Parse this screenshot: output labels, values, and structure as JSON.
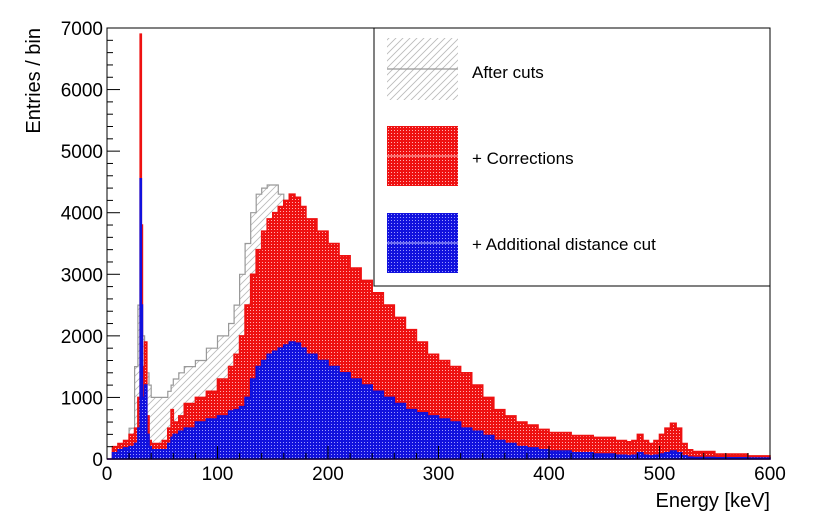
{
  "chart_data": {
    "type": "histogram",
    "title": "",
    "xlabel": "Energy [keV]",
    "ylabel": "Entries / bin",
    "xlim": [
      0,
      600
    ],
    "ylim": [
      0,
      7000
    ],
    "x_ticks": [
      "0",
      "100",
      "200",
      "300",
      "400",
      "500",
      "600"
    ],
    "y_ticks": [
      "0",
      "1000",
      "2000",
      "3000",
      "4000",
      "5000",
      "6000",
      "7000"
    ],
    "legend_position": "top-right",
    "x": [
      0,
      5,
      10,
      15,
      20,
      25,
      28,
      30,
      31,
      32,
      34,
      36,
      38,
      40,
      45,
      50,
      55,
      58,
      60,
      65,
      70,
      80,
      90,
      100,
      110,
      115,
      120,
      125,
      130,
      135,
      140,
      145,
      150,
      155,
      160,
      165,
      170,
      175,
      180,
      190,
      200,
      210,
      220,
      230,
      240,
      250,
      260,
      270,
      280,
      290,
      300,
      310,
      320,
      330,
      340,
      350,
      360,
      370,
      380,
      390,
      400,
      420,
      440,
      460,
      470,
      475,
      480,
      485,
      490,
      495,
      500,
      505,
      510,
      515,
      520,
      525,
      530,
      550,
      580,
      600
    ],
    "series": [
      {
        "name": "After cuts",
        "color": "#999999",
        "fill": "hatched",
        "values": [
          0,
          150,
          250,
          300,
          500,
          1500,
          2500,
          3800,
          2600,
          2000,
          1700,
          1400,
          1200,
          1000,
          1000,
          1000,
          1100,
          1200,
          1300,
          1400,
          1500,
          1600,
          1800,
          2000,
          2200,
          2500,
          3000,
          3500,
          4000,
          4300,
          4400,
          4450,
          4450,
          4300,
          4100,
          3900,
          3700,
          3500,
          3300,
          3000,
          2700,
          2500,
          2300,
          2100,
          1900,
          1750,
          1600,
          1500,
          1350,
          1250,
          1150,
          1000,
          900,
          750,
          650,
          500,
          450,
          400,
          380,
          360,
          350,
          300,
          250,
          200,
          180,
          150,
          130,
          120,
          130,
          140,
          120,
          100,
          100,
          90,
          80,
          60,
          50,
          40,
          30,
          20
        ]
      },
      {
        "name": "+ Corrections",
        "color": "#ee1111",
        "fill": "dotted",
        "values": [
          0,
          200,
          250,
          300,
          400,
          500,
          1000,
          6900,
          3800,
          1500,
          1900,
          700,
          300,
          250,
          250,
          300,
          500,
          800,
          600,
          700,
          900,
          1000,
          1100,
          1300,
          1500,
          1700,
          2000,
          2500,
          3000,
          3400,
          3700,
          3900,
          4000,
          4100,
          4200,
          4300,
          4250,
          4100,
          3900,
          3700,
          3500,
          3300,
          3100,
          2900,
          2700,
          2500,
          2300,
          2100,
          1900,
          1700,
          1600,
          1500,
          1400,
          1200,
          1000,
          800,
          700,
          600,
          550,
          480,
          430,
          380,
          350,
          300,
          280,
          300,
          400,
          300,
          250,
          300,
          400,
          500,
          580,
          500,
          250,
          150,
          120,
          80,
          50,
          30
        ]
      },
      {
        "name": "+ Additional distance cut",
        "color": "#1111dd",
        "fill": "dotted",
        "values": [
          0,
          100,
          150,
          180,
          200,
          250,
          500,
          4550,
          2500,
          1000,
          1200,
          400,
          200,
          150,
          150,
          150,
          250,
          350,
          400,
          450,
          500,
          600,
          650,
          700,
          780,
          800,
          850,
          1000,
          1300,
          1500,
          1600,
          1700,
          1750,
          1800,
          1850,
          1900,
          1880,
          1800,
          1700,
          1600,
          1500,
          1400,
          1300,
          1200,
          1100,
          1000,
          900,
          800,
          750,
          700,
          650,
          600,
          500,
          450,
          380,
          300,
          250,
          200,
          180,
          150,
          130,
          100,
          80,
          60,
          50,
          60,
          100,
          60,
          50,
          60,
          80,
          100,
          130,
          100,
          50,
          30,
          25,
          20,
          15,
          10
        ]
      }
    ],
    "annotations": []
  },
  "legend": {
    "items": [
      {
        "label": "After cuts",
        "color": "#999999",
        "style": "hatched"
      },
      {
        "label": "+ Corrections",
        "color": "#ee1111",
        "style": "dotted"
      },
      {
        "label": "+ Additional distance cut",
        "color": "#1111dd",
        "style": "dotted"
      }
    ]
  }
}
